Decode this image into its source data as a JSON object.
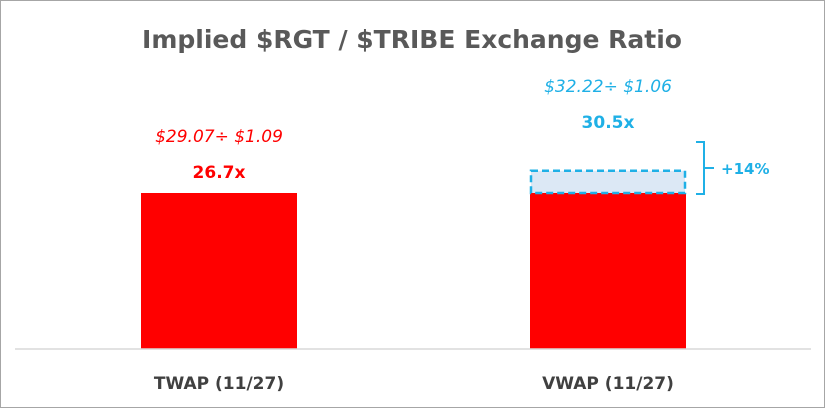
{
  "chart_data": {
    "type": "bar",
    "title": "Implied $RGT / $TRIBE Exchange Ratio",
    "categories": [
      "TWAP (11/27)",
      "VWAP (11/27)"
    ],
    "values": [
      26.7,
      30.5
    ],
    "base_values": [
      26.7,
      26.7
    ],
    "data_labels": [
      "26.7x",
      "30.5x"
    ],
    "formulas": [
      "$29.07÷ $1.09",
      "$32.22÷ $1.06"
    ],
    "increment": {
      "category": "VWAP (11/27)",
      "label": "+14%"
    },
    "ylim": [
      0,
      40
    ],
    "grid": false,
    "colors": {
      "base_bar": "#ff0000",
      "twap_text": "#ff0000",
      "vwap_text": "#1fb0e6",
      "increment_fill": "#dce8f5",
      "title_text": "#595959",
      "tick_text": "#404040",
      "axis": "#d9d9d9"
    }
  }
}
